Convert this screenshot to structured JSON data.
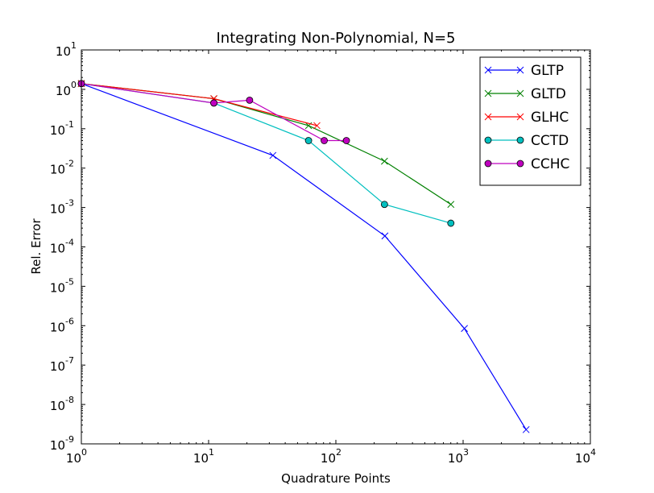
{
  "chart_data": {
    "type": "line",
    "title": "Integrating Non-Polynomial, N=5",
    "xlabel": "Quadrature Points",
    "ylabel": "Rel. Error",
    "xscale": "log",
    "yscale": "log",
    "xlim": [
      1,
      10000
    ],
    "ylim": [
      1e-09,
      10
    ],
    "x_ticks": [
      {
        "value": 1,
        "base": "10",
        "exp": "0"
      },
      {
        "value": 10,
        "base": "10",
        "exp": "1"
      },
      {
        "value": 100,
        "base": "10",
        "exp": "2"
      },
      {
        "value": 1000,
        "base": "10",
        "exp": "3"
      },
      {
        "value": 10000,
        "base": "10",
        "exp": "4"
      }
    ],
    "y_ticks": [
      {
        "value": 1e-09,
        "base": "10",
        "exp": "-9"
      },
      {
        "value": 1e-08,
        "base": "10",
        "exp": "-8"
      },
      {
        "value": 1e-07,
        "base": "10",
        "exp": "-7"
      },
      {
        "value": 1e-06,
        "base": "10",
        "exp": "-6"
      },
      {
        "value": 1e-05,
        "base": "10",
        "exp": "-5"
      },
      {
        "value": 0.0001,
        "base": "10",
        "exp": "-4"
      },
      {
        "value": 0.001,
        "base": "10",
        "exp": "-3"
      },
      {
        "value": 0.01,
        "base": "10",
        "exp": "-2"
      },
      {
        "value": 0.1,
        "base": "10",
        "exp": "-1"
      },
      {
        "value": 1,
        "base": "10",
        "exp": "0"
      },
      {
        "value": 10,
        "base": "10",
        "exp": "1"
      }
    ],
    "legend_position": "top-right",
    "grid": false,
    "series": [
      {
        "name": "GLTP",
        "color": "#0000ff",
        "marker": "x",
        "x": [
          1,
          32,
          243,
          1024,
          3125
        ],
        "y": [
          1.4,
          0.021,
          0.00019,
          8.5e-07,
          2.3e-09
        ]
      },
      {
        "name": "GLTD",
        "color": "#008000",
        "marker": "x",
        "x": [
          1,
          11,
          61,
          241,
          801
        ],
        "y": [
          1.4,
          0.58,
          0.12,
          0.015,
          0.0012
        ]
      },
      {
        "name": "GLHC",
        "color": "#ff0000",
        "marker": "x",
        "x": [
          1,
          11,
          71
        ],
        "y": [
          1.4,
          0.58,
          0.12
        ]
      },
      {
        "name": "CCTD",
        "color": "#00bfbf",
        "marker": "o",
        "x": [
          1,
          11,
          61,
          241,
          801
        ],
        "y": [
          1.4,
          0.45,
          0.05,
          0.0012,
          0.0004
        ]
      },
      {
        "name": "CCHC",
        "color": "#bf00bf",
        "marker": "o",
        "x": [
          1,
          11,
          21,
          81,
          121
        ],
        "y": [
          1.4,
          0.45,
          0.53,
          0.05,
          0.05
        ]
      }
    ]
  }
}
